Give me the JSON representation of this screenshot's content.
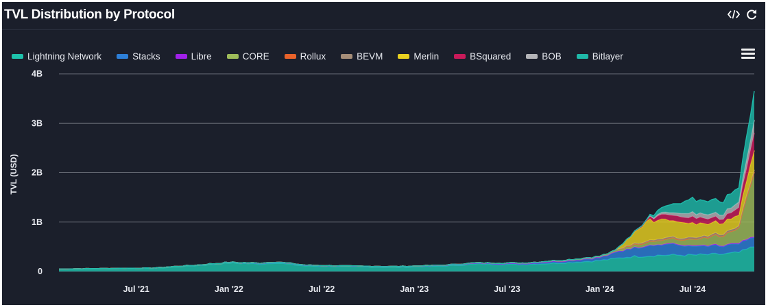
{
  "header": {
    "title": "TVL Distribution by Protocol",
    "code_icon": "code-icon",
    "refresh_icon": "refresh-icon"
  },
  "menu_icon": "hamburger-menu-icon",
  "legend": [
    {
      "name": "Lightning Network",
      "color": "#1ec2ac"
    },
    {
      "name": "Stacks",
      "color": "#2d7fd8"
    },
    {
      "name": "Libre",
      "color": "#a020e8"
    },
    {
      "name": "CORE",
      "color": "#9ebc5a"
    },
    {
      "name": "Rollux",
      "color": "#e8622a"
    },
    {
      "name": "BEVM",
      "color": "#a58d78"
    },
    {
      "name": "Merlin",
      "color": "#e8d020"
    },
    {
      "name": "BSquared",
      "color": "#c81a5a"
    },
    {
      "name": "BOB",
      "color": "#b4b4b8"
    },
    {
      "name": "Bitlayer",
      "color": "#1fb8a8"
    }
  ],
  "chart_data": {
    "type": "area",
    "stacked": true,
    "title": "TVL Distribution by Protocol",
    "xlabel": "",
    "ylabel": "TVL (USD)",
    "ylim": [
      0,
      4000000000
    ],
    "y_ticks": [
      {
        "value": 0,
        "label": "0"
      },
      {
        "value": 1000000000,
        "label": "1B"
      },
      {
        "value": 2000000000,
        "label": "2B"
      },
      {
        "value": 3000000000,
        "label": "3B"
      },
      {
        "value": 4000000000,
        "label": "4B"
      }
    ],
    "x_range": [
      "2021-02",
      "2024-11"
    ],
    "x_ticks": [
      {
        "date": "2021-07",
        "label": "Jul '21"
      },
      {
        "date": "2022-01",
        "label": "Jan '22"
      },
      {
        "date": "2022-07",
        "label": "Jul '22"
      },
      {
        "date": "2023-01",
        "label": "Jan '23"
      },
      {
        "date": "2023-07",
        "label": "Jul '23"
      },
      {
        "date": "2024-01",
        "label": "Jan '24"
      },
      {
        "date": "2024-07",
        "label": "Jul '24"
      }
    ],
    "grid": true,
    "legend_position": "top-left",
    "units": "millions USD",
    "series": [
      {
        "name": "Lightning Network",
        "color": "#1ec2ac",
        "points": [
          [
            "2021-02",
            45
          ],
          [
            "2021-05",
            55
          ],
          [
            "2021-08",
            60
          ],
          [
            "2021-11",
            120
          ],
          [
            "2022-01",
            170
          ],
          [
            "2022-03",
            150
          ],
          [
            "2022-04",
            175
          ],
          [
            "2022-06",
            110
          ],
          [
            "2022-09",
            95
          ],
          [
            "2022-12",
            85
          ],
          [
            "2023-03",
            110
          ],
          [
            "2023-05",
            150
          ],
          [
            "2023-08",
            140
          ],
          [
            "2023-11",
            180
          ],
          [
            "2024-01",
            220
          ],
          [
            "2024-03",
            300
          ],
          [
            "2024-05",
            330
          ],
          [
            "2024-07",
            330
          ],
          [
            "2024-09",
            350
          ],
          [
            "2024-10",
            380
          ],
          [
            "2024-11",
            500
          ]
        ]
      },
      {
        "name": "Stacks",
        "color": "#2d7fd8",
        "points": [
          [
            "2021-02",
            5
          ],
          [
            "2021-11",
            10
          ],
          [
            "2022-04",
            20
          ],
          [
            "2022-09",
            10
          ],
          [
            "2023-03",
            15
          ],
          [
            "2023-08",
            20
          ],
          [
            "2023-11",
            40
          ],
          [
            "2024-01",
            60
          ],
          [
            "2024-03",
            180
          ],
          [
            "2024-05",
            220
          ],
          [
            "2024-07",
            180
          ],
          [
            "2024-09",
            160
          ],
          [
            "2024-10",
            180
          ],
          [
            "2024-11",
            200
          ]
        ]
      },
      {
        "name": "Libre",
        "color": "#a020e8",
        "points": [
          [
            "2021-02",
            0
          ],
          [
            "2023-08",
            0
          ],
          [
            "2024-01",
            5
          ],
          [
            "2024-05",
            10
          ],
          [
            "2024-11",
            15
          ]
        ]
      },
      {
        "name": "CORE",
        "color": "#9ebc5a",
        "points": [
          [
            "2021-02",
            0
          ],
          [
            "2023-02",
            3
          ],
          [
            "2023-08",
            10
          ],
          [
            "2023-11",
            15
          ],
          [
            "2024-01",
            20
          ],
          [
            "2024-03",
            50
          ],
          [
            "2024-05",
            80
          ],
          [
            "2024-07",
            120
          ],
          [
            "2024-09",
            200
          ],
          [
            "2024-10",
            300
          ],
          [
            "2024-11",
            1300
          ]
        ]
      },
      {
        "name": "Rollux",
        "color": "#e8622a",
        "points": [
          [
            "2021-02",
            0
          ],
          [
            "2023-06",
            2
          ],
          [
            "2024-01",
            3
          ],
          [
            "2024-11",
            3
          ]
        ]
      },
      {
        "name": "BEVM",
        "color": "#a58d78",
        "points": [
          [
            "2021-02",
            0
          ],
          [
            "2024-02",
            0
          ],
          [
            "2024-03",
            20
          ],
          [
            "2024-05",
            30
          ],
          [
            "2024-11",
            40
          ]
        ]
      },
      {
        "name": "Merlin",
        "color": "#e8d020",
        "points": [
          [
            "2021-02",
            0
          ],
          [
            "2024-02",
            0
          ],
          [
            "2024-03",
            150
          ],
          [
            "2024-04",
            400
          ],
          [
            "2024-05",
            380
          ],
          [
            "2024-07",
            280
          ],
          [
            "2024-09",
            230
          ],
          [
            "2024-10",
            230
          ],
          [
            "2024-11",
            400
          ]
        ]
      },
      {
        "name": "BSquared",
        "color": "#c81a5a",
        "points": [
          [
            "2021-02",
            0
          ],
          [
            "2024-02",
            0
          ],
          [
            "2024-04",
            30
          ],
          [
            "2024-05",
            100
          ],
          [
            "2024-07",
            120
          ],
          [
            "2024-09",
            80
          ],
          [
            "2024-10",
            150
          ],
          [
            "2024-11",
            350
          ]
        ]
      },
      {
        "name": "BOB",
        "color": "#b4b4b8",
        "points": [
          [
            "2021-02",
            0
          ],
          [
            "2024-04",
            0
          ],
          [
            "2024-05",
            40
          ],
          [
            "2024-07",
            90
          ],
          [
            "2024-09",
            90
          ],
          [
            "2024-10",
            120
          ],
          [
            "2024-11",
            250
          ]
        ]
      },
      {
        "name": "Bitlayer",
        "color": "#1fb8a8",
        "points": [
          [
            "2021-02",
            0
          ],
          [
            "2024-04",
            0
          ],
          [
            "2024-05",
            100
          ],
          [
            "2024-07",
            280
          ],
          [
            "2024-09",
            260
          ],
          [
            "2024-10",
            300
          ],
          [
            "2024-11",
            600
          ]
        ]
      }
    ]
  }
}
